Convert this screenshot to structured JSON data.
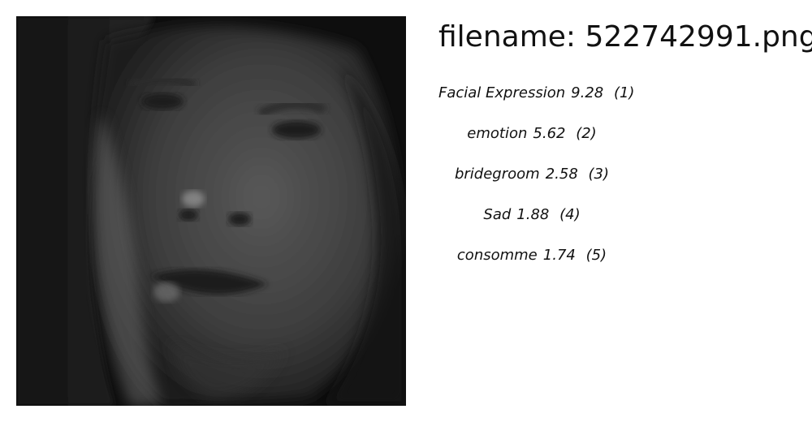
{
  "header": {
    "filename_title": "filename: 522742991.png"
  },
  "image": {
    "icon": "face-photo",
    "colors": {
      "background": "#0d0d0d",
      "skin": "#4a4a4a",
      "highlight": "#8c8c8c"
    }
  },
  "labels": [
    {
      "name": "Facial Expression",
      "score": "9.28",
      "rank": "(1)"
    },
    {
      "name": "emotion",
      "score": "5.62",
      "rank": "(2)"
    },
    {
      "name": "bridegroom",
      "score": "2.58",
      "rank": "(3)"
    },
    {
      "name": "Sad",
      "score": "1.88",
      "rank": "(4)"
    },
    {
      "name": "consomme",
      "score": "1.74",
      "rank": "(5)"
    }
  ]
}
